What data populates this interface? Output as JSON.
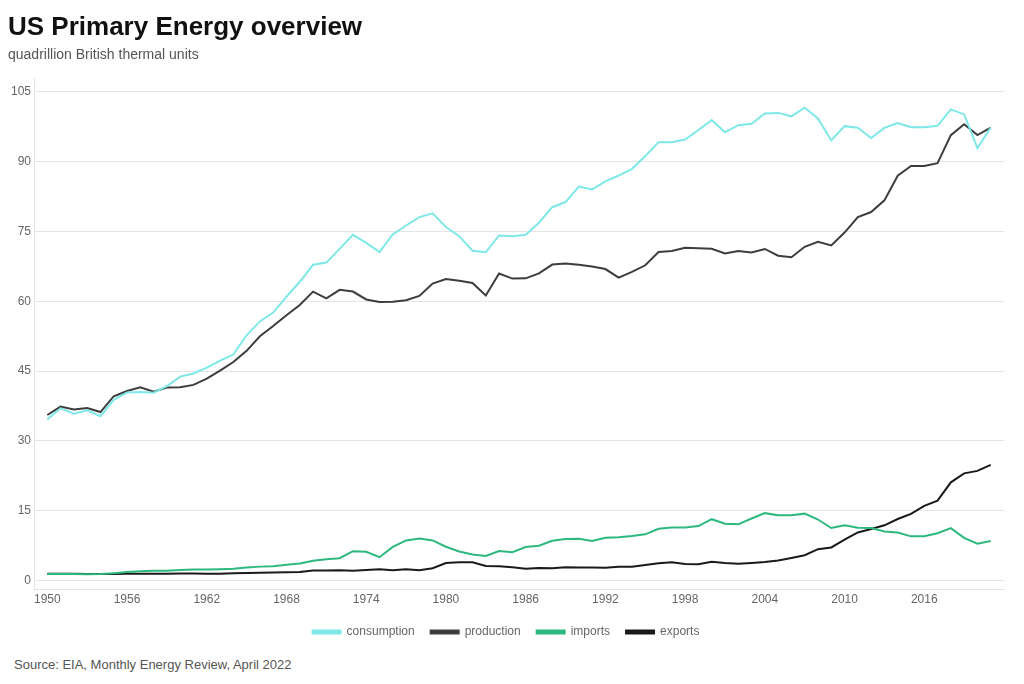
{
  "chart_data": {
    "type": "line",
    "title": "US Primary Energy overview",
    "subtitle": "quadrillion British thermal units",
    "source": "Source: EIA, Monthly Energy Review, April 2022",
    "x": [
      1950,
      1951,
      1952,
      1953,
      1954,
      1955,
      1956,
      1957,
      1958,
      1959,
      1960,
      1961,
      1962,
      1963,
      1964,
      1965,
      1966,
      1967,
      1968,
      1969,
      1970,
      1971,
      1972,
      1973,
      1974,
      1975,
      1976,
      1977,
      1978,
      1979,
      1980,
      1981,
      1982,
      1983,
      1984,
      1985,
      1986,
      1987,
      1988,
      1989,
      1990,
      1991,
      1992,
      1993,
      1994,
      1995,
      1996,
      1997,
      1998,
      1999,
      2000,
      2001,
      2002,
      2003,
      2004,
      2005,
      2006,
      2007,
      2008,
      2009,
      2010,
      2011,
      2012,
      2013,
      2014,
      2015,
      2016,
      2017,
      2018,
      2019,
      2020,
      2021
    ],
    "series": [
      {
        "name": "consumption",
        "color": "#7ee8e8",
        "values": [
          34.6,
          36.97,
          35.82,
          36.57,
          35.29,
          38.82,
          40.38,
          40.47,
          40.35,
          41.74,
          43.8,
          44.46,
          45.74,
          47.22,
          48.54,
          52.68,
          55.66,
          57.57,
          61.0,
          64.19,
          67.84,
          68.31,
          71.26,
          74.28,
          72.54,
          70.55,
          74.36,
          76.29,
          78.09,
          78.9,
          75.96,
          73.99,
          70.85,
          70.52,
          74.14,
          73.98,
          74.3,
          76.89,
          80.22,
          81.33,
          84.65,
          84.04,
          85.76,
          87.03,
          88.47,
          91.21,
          94.21,
          94.18,
          94.76,
          96.82,
          98.95,
          96.33,
          97.85,
          98.16,
          100.35,
          100.5,
          99.76,
          101.6,
          99.3,
          94.58,
          97.65,
          97.3,
          95.1,
          97.27,
          98.33,
          97.4,
          97.43,
          97.73,
          101.25,
          100.17,
          92.94,
          97.33
        ]
      },
      {
        "name": "production",
        "color": "#3d3d3d",
        "values": [
          35.54,
          37.36,
          36.74,
          37.03,
          36.18,
          39.58,
          40.71,
          41.49,
          40.53,
          41.44,
          41.49,
          42.02,
          43.38,
          45.08,
          46.94,
          49.34,
          52.47,
          54.67,
          57.0,
          59.19,
          62.07,
          60.6,
          62.45,
          62.09,
          60.38,
          59.86,
          59.89,
          60.22,
          61.14,
          63.8,
          64.76,
          64.41,
          63.93,
          61.24,
          65.96,
          64.87,
          64.93,
          66.0,
          67.89,
          68.1,
          67.85,
          67.48,
          66.92,
          65.06,
          66.31,
          67.73,
          70.6,
          70.81,
          71.5,
          71.41,
          71.28,
          70.26,
          70.82,
          70.47,
          71.24,
          69.8,
          69.45,
          71.71,
          72.76,
          72.0,
          74.77,
          78.09,
          79.18,
          81.69,
          86.99,
          89.07,
          89.1,
          89.69,
          95.72,
          98.06,
          95.73,
          97.33
        ]
      },
      {
        "name": "imports",
        "color": "#2db87d",
        "values": [
          1.37,
          1.36,
          1.37,
          1.31,
          1.34,
          1.54,
          1.77,
          1.97,
          2.05,
          2.03,
          2.2,
          2.31,
          2.3,
          2.38,
          2.49,
          2.74,
          2.94,
          3.01,
          3.36,
          3.63,
          4.18,
          4.51,
          4.74,
          6.26,
          6.12,
          4.97,
          7.17,
          8.57,
          9.0,
          8.57,
          7.21,
          6.21,
          5.53,
          5.24,
          6.31,
          6.02,
          7.15,
          7.44,
          8.5,
          8.89,
          8.95,
          8.46,
          9.14,
          9.28,
          9.5,
          9.89,
          11.08,
          11.36,
          11.35,
          11.66,
          13.14,
          12.18,
          12.04,
          13.28,
          14.44,
          13.97,
          13.98,
          14.33,
          13.07,
          11.24,
          11.81,
          11.3,
          11.24,
          10.48,
          10.27,
          9.45,
          9.46,
          10.12,
          11.23,
          9.14,
          7.86,
          8.45
        ]
      },
      {
        "name": "exports",
        "color": "#1a1a1a",
        "values": [
          1.4,
          1.4,
          1.39,
          1.38,
          1.37,
          1.38,
          1.39,
          1.41,
          1.4,
          1.42,
          1.48,
          1.46,
          1.41,
          1.43,
          1.49,
          1.56,
          1.61,
          1.67,
          1.74,
          1.79,
          2.11,
          2.13,
          2.17,
          2.06,
          2.19,
          2.36,
          2.18,
          2.38,
          2.15,
          2.59,
          3.72,
          3.88,
          3.87,
          3.08,
          3.01,
          2.83,
          2.46,
          2.65,
          2.59,
          2.83,
          2.76,
          2.75,
          2.68,
          2.93,
          2.89,
          3.31,
          3.68,
          3.88,
          3.52,
          3.44,
          4.01,
          3.73,
          3.54,
          3.7,
          3.92,
          4.24,
          4.81,
          5.39,
          6.69,
          7.07,
          8.73,
          10.28,
          11.02,
          11.82,
          13.18,
          14.29,
          16.02,
          17.14,
          21.06,
          23.0,
          23.53,
          24.83
        ]
      }
    ],
    "xlim": [
      1949,
      2022
    ],
    "xticks": [
      1950,
      1956,
      1962,
      1968,
      1974,
      1980,
      1986,
      1992,
      1998,
      2004,
      2010,
      2016
    ],
    "ylim": [
      -2,
      108
    ],
    "yticks": [
      0,
      15,
      30,
      45,
      60,
      75,
      90,
      105
    ],
    "grid": "y",
    "legend": "bottom"
  }
}
